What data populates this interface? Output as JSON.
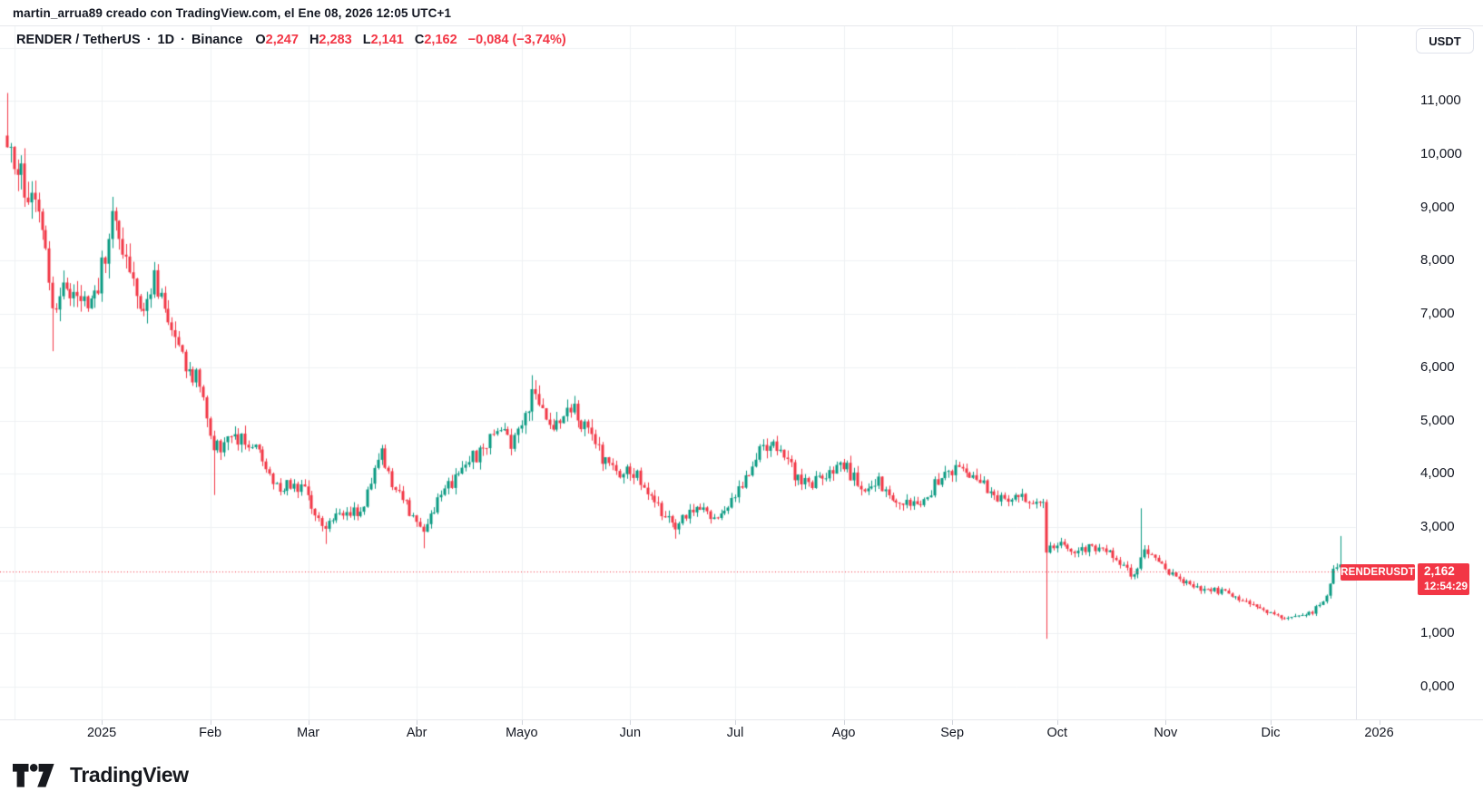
{
  "attribution": "martin_arrua89 creado con TradingView.com, el Ene 08, 2026 12:05 UTC+1",
  "legend": {
    "symbol": "RENDER / TetherUS",
    "sep": "·",
    "interval": "1D",
    "exchange": "Binance",
    "ohlc": [
      {
        "label": "O",
        "value": "2,247"
      },
      {
        "label": "H",
        "value": "2,283"
      },
      {
        "label": "L",
        "value": "2,141"
      },
      {
        "label": "C",
        "value": "2,162"
      }
    ],
    "change": "−0,084 (−3,74%)"
  },
  "currency_button": "USDT",
  "price_line_badge": {
    "symbol": "RENDERUSDT",
    "price": "2,162",
    "countdown": "12:54:29"
  },
  "footer": {
    "brand": "TradingView"
  },
  "colors": {
    "up": "#089981",
    "down": "#F23645",
    "text": "#131722",
    "grid": "#EEF0F3",
    "axis_border": "#E0E3EB",
    "price_line": "#F23645"
  },
  "chart_data": {
    "type": "candlestick",
    "title": "RENDER / TetherUS · 1D · Binance",
    "symbol": "RENDERUSDT",
    "interval": "1D",
    "exchange": "Binance",
    "quote_currency": "USDT",
    "last_candle": {
      "open": 2.247,
      "high": 2.283,
      "low": 2.141,
      "close": 2.162,
      "change": -0.084,
      "change_pct": -3.74
    },
    "countdown": "12:54:29",
    "price_line": {
      "value": 2.162,
      "style": "dotted",
      "color": "#F23645"
    },
    "y_axis": {
      "position": "right",
      "min": 0,
      "max": 12.4,
      "tick_step": 1,
      "tick_values": [
        11,
        10,
        9,
        8,
        7,
        6,
        5,
        4,
        3,
        2,
        1,
        0
      ],
      "tick_labels": [
        "11,000",
        "10,000",
        "9,000",
        "8,000",
        "7,000",
        "6,000",
        "5,000",
        "4,000",
        "3,000",
        "2,000",
        "1,000",
        "0,000"
      ]
    },
    "x_axis": {
      "labels": [
        {
          "label": "",
          "day": 2
        },
        {
          "label": "2025",
          "day": 27
        },
        {
          "label": "Feb",
          "day": 58
        },
        {
          "label": "Mar",
          "day": 86
        },
        {
          "label": "Abr",
          "day": 117
        },
        {
          "label": "Mayo",
          "day": 147
        },
        {
          "label": "Jun",
          "day": 178
        },
        {
          "label": "Jul",
          "day": 208
        },
        {
          "label": "Ago",
          "day": 239
        },
        {
          "label": "Sep",
          "day": 270
        },
        {
          "label": "Oct",
          "day": 300
        },
        {
          "label": "Nov",
          "day": 331
        },
        {
          "label": "Dic",
          "day": 361
        },
        {
          "label": "2026",
          "day": 392
        }
      ]
    },
    "days_total": 383,
    "price_path": [
      [
        0,
        10.35
      ],
      [
        2,
        9.9
      ],
      [
        4,
        9.6
      ],
      [
        6,
        9.3
      ],
      [
        8,
        9.0
      ],
      [
        10,
        8.6
      ],
      [
        13,
        7.0
      ],
      [
        16,
        7.5
      ],
      [
        19,
        7.2
      ],
      [
        23,
        7.1
      ],
      [
        26,
        7.5
      ],
      [
        29,
        8.5
      ],
      [
        30,
        8.85
      ],
      [
        32,
        8.3
      ],
      [
        36,
        7.7
      ],
      [
        39,
        7.1
      ],
      [
        42,
        7.6
      ],
      [
        45,
        7.2
      ],
      [
        49,
        6.5
      ],
      [
        52,
        5.9
      ],
      [
        55,
        5.8
      ],
      [
        57,
        5.1
      ],
      [
        59,
        4.5
      ],
      [
        61,
        4.5
      ],
      [
        65,
        4.7
      ],
      [
        68,
        4.6
      ],
      [
        71,
        4.6
      ],
      [
        74,
        4.0
      ],
      [
        78,
        3.7
      ],
      [
        81,
        3.8
      ],
      [
        85,
        3.7
      ],
      [
        88,
        3.3
      ],
      [
        91,
        2.95
      ],
      [
        94,
        3.2
      ],
      [
        98,
        3.3
      ],
      [
        102,
        3.3
      ],
      [
        105,
        4.2
      ],
      [
        107,
        4.4
      ],
      [
        110,
        3.8
      ],
      [
        113,
        3.5
      ],
      [
        117,
        3.1
      ],
      [
        119,
        2.9
      ],
      [
        121,
        3.2
      ],
      [
        124,
        3.7
      ],
      [
        128,
        3.9
      ],
      [
        131,
        4.3
      ],
      [
        134,
        4.35
      ],
      [
        137,
        4.6
      ],
      [
        141,
        4.75
      ],
      [
        144,
        4.6
      ],
      [
        147,
        4.9
      ],
      [
        150,
        5.5
      ],
      [
        153,
        5.2
      ],
      [
        156,
        4.8
      ],
      [
        159,
        5.1
      ],
      [
        162,
        5.3
      ],
      [
        164,
        4.9
      ],
      [
        167,
        4.7
      ],
      [
        170,
        4.3
      ],
      [
        174,
        3.95
      ],
      [
        177,
        4.2
      ],
      [
        181,
        3.85
      ],
      [
        184,
        3.5
      ],
      [
        188,
        3.2
      ],
      [
        191,
        3.0
      ],
      [
        194,
        3.2
      ],
      [
        198,
        3.3
      ],
      [
        202,
        3.2
      ],
      [
        205,
        3.35
      ],
      [
        208,
        3.6
      ],
      [
        212,
        4.0
      ],
      [
        215,
        4.4
      ],
      [
        218,
        4.65
      ],
      [
        221,
        4.4
      ],
      [
        224,
        4.1
      ],
      [
        227,
        3.8
      ],
      [
        230,
        3.8
      ],
      [
        233,
        4.0
      ],
      [
        237,
        4.15
      ],
      [
        240,
        4.1
      ],
      [
        242,
        3.9
      ],
      [
        246,
        3.75
      ],
      [
        249,
        3.85
      ],
      [
        252,
        3.6
      ],
      [
        256,
        3.5
      ],
      [
        259,
        3.4
      ],
      [
        263,
        3.6
      ],
      [
        266,
        3.9
      ],
      [
        269,
        4.1
      ],
      [
        272,
        4.1
      ],
      [
        275,
        4.05
      ],
      [
        279,
        3.8
      ],
      [
        282,
        3.6
      ],
      [
        285,
        3.55
      ],
      [
        289,
        3.55
      ],
      [
        292,
        3.5
      ],
      [
        296,
        3.45
      ],
      [
        297,
        2.6
      ],
      [
        299,
        2.6
      ],
      [
        302,
        2.7
      ],
      [
        305,
        2.55
      ],
      [
        309,
        2.6
      ],
      [
        312,
        2.55
      ],
      [
        315,
        2.5
      ],
      [
        318,
        2.3
      ],
      [
        322,
        2.05
      ],
      [
        324,
        2.5
      ],
      [
        327,
        2.5
      ],
      [
        330,
        2.3
      ],
      [
        333,
        2.1
      ],
      [
        336,
        1.95
      ],
      [
        340,
        1.88
      ],
      [
        343,
        1.82
      ],
      [
        346,
        1.8
      ],
      [
        349,
        1.78
      ],
      [
        352,
        1.65
      ],
      [
        356,
        1.5
      ],
      [
        360,
        1.38
      ],
      [
        363,
        1.32
      ],
      [
        367,
        1.3
      ],
      [
        370,
        1.32
      ],
      [
        373,
        1.4
      ],
      [
        377,
        1.7
      ],
      [
        379,
        2.2
      ],
      [
        381,
        2.25
      ],
      [
        382,
        2.162
      ]
    ],
    "wick_spikes": [
      {
        "day": 0,
        "high": 11.15
      },
      {
        "day": 13,
        "low": 6.3
      },
      {
        "day": 30,
        "high": 9.2
      },
      {
        "day": 59,
        "low": 3.6
      },
      {
        "day": 91,
        "low": 2.68
      },
      {
        "day": 119,
        "low": 2.6
      },
      {
        "day": 150,
        "high": 5.85
      },
      {
        "day": 191,
        "low": 2.78
      },
      {
        "day": 297,
        "low": 0.9
      },
      {
        "day": 324,
        "high": 3.35
      },
      {
        "day": 381,
        "high": 2.83
      }
    ]
  }
}
